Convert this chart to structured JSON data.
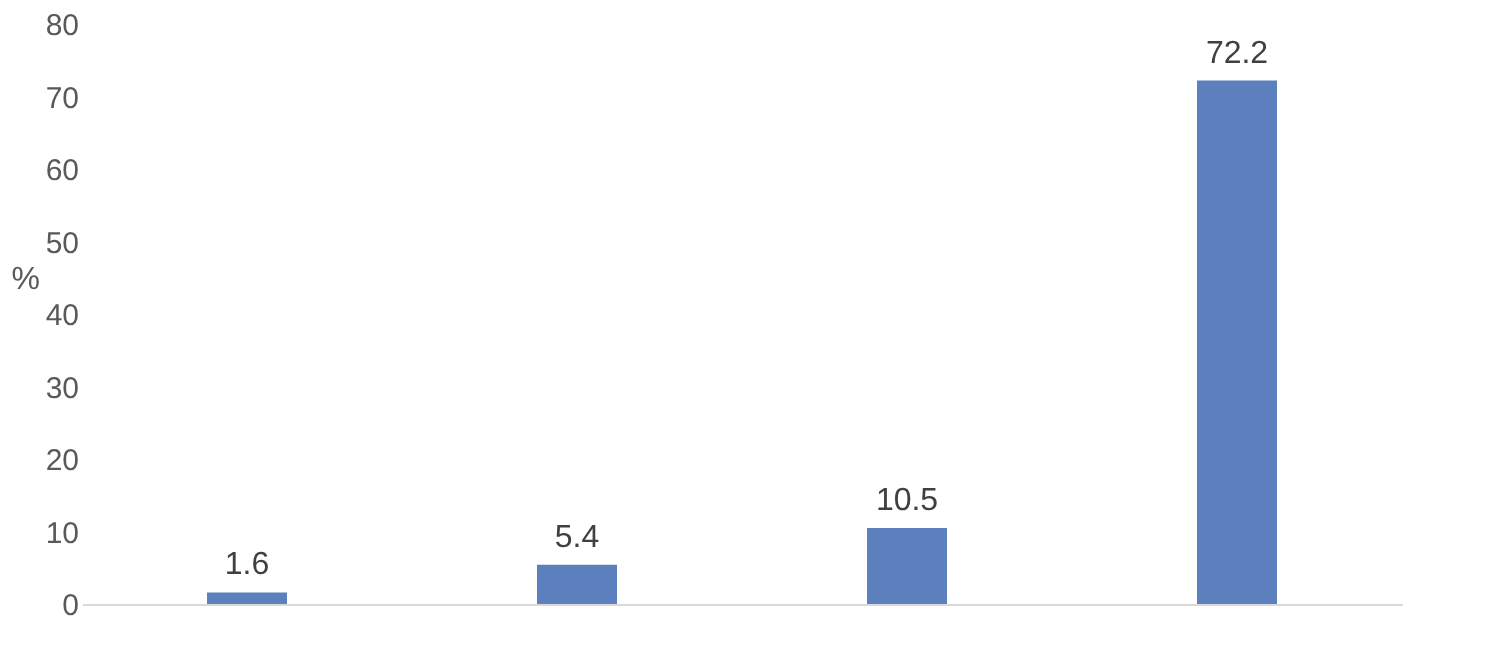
{
  "chart_data": {
    "type": "bar",
    "categories": [
      null,
      null,
      null,
      null
    ],
    "values": [
      1.6,
      5.4,
      10.5,
      72.2
    ],
    "color": "#5b80bd",
    "ylabel": "%",
    "ylim": [
      0,
      80
    ],
    "yticks": [
      0,
      10,
      20,
      30,
      40,
      50,
      60,
      70,
      80
    ],
    "data_labels": true,
    "grid": false
  }
}
